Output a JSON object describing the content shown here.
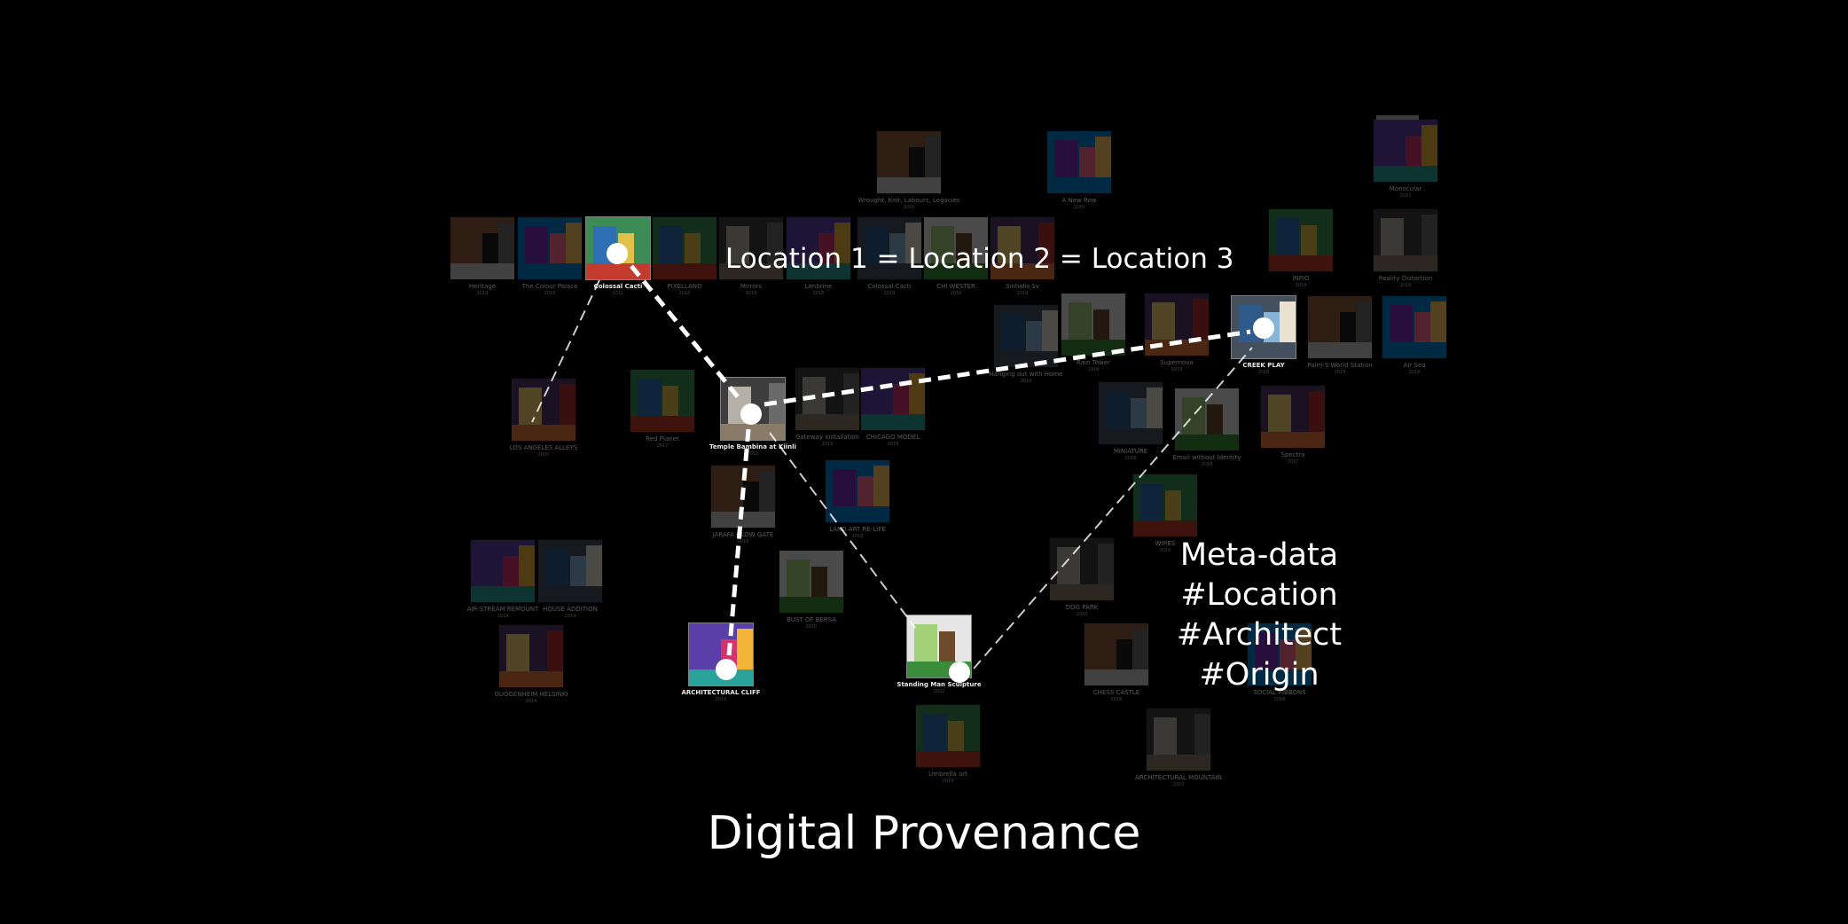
{
  "annotations": {
    "location_equation": "Location 1 = Location 2 = Location 3",
    "metadata_heading": "Meta-data",
    "metadata_tags": [
      "#Location",
      "#Architect",
      "#Origin"
    ]
  },
  "title": "Digital Provenance",
  "colors": {
    "background": "#000000",
    "text": "#ffffff",
    "line": "#ffffff",
    "dot": "#ffffff"
  },
  "nodes": [
    {
      "id": "colossal-cacti-a",
      "label": "Colossal Cacti",
      "year": "2011",
      "highlight": true
    },
    {
      "id": "temple-bambina",
      "label": "Temple Bambina at Kiinli",
      "year": "2012",
      "highlight": true
    },
    {
      "id": "architectural-cliff",
      "label": "ARCHITECTURAL CLIFF",
      "year": "2019",
      "highlight": true
    },
    {
      "id": "creek-play",
      "label": "CREEK PLAY",
      "year": "2018",
      "highlight": true
    },
    {
      "id": "standing-man",
      "label": "Standing Man Sculpture",
      "year": "2022",
      "highlight": true
    },
    {
      "id": "los-angeles-alleys",
      "label": "LOS ANGELES ALLEYS",
      "year": "2020",
      "highlight": false
    },
    {
      "id": "heritage",
      "label": "Heritage",
      "year": "2019",
      "highlight": false
    },
    {
      "id": "colour-palace",
      "label": "The Colour Palace",
      "year": "2019",
      "highlight": false
    },
    {
      "id": "pixelland",
      "label": "PIXELLAND",
      "year": "2018",
      "highlight": false
    },
    {
      "id": "mirrors",
      "label": "Mirrors",
      "year": "2019",
      "highlight": false
    },
    {
      "id": "limbrine",
      "label": "Limbrine",
      "year": "2018",
      "highlight": false
    },
    {
      "id": "colossal-cacti-b",
      "label": "Colossal Cacti",
      "year": "2019",
      "highlight": false
    },
    {
      "id": "chi-wester",
      "label": "CHI WESTER",
      "year": "2019",
      "highlight": false
    },
    {
      "id": "sinhalis-sv",
      "label": "Sinhalis Sv",
      "year": "2019",
      "highlight": false
    },
    {
      "id": "wrought-knit",
      "label": "Wrought, Knit, Labours, Legacies",
      "year": "2020",
      "highlight": false
    },
    {
      "id": "a-new-row",
      "label": "A New Row",
      "year": "2020",
      "highlight": false
    },
    {
      "id": "red-planet",
      "label": "Red Planet",
      "year": "2017",
      "highlight": false
    },
    {
      "id": "gateway-installation",
      "label": "Gateway installation",
      "year": "2019",
      "highlight": false
    },
    {
      "id": "chicago-model",
      "label": "CHICAGO MODEL",
      "year": "2019",
      "highlight": false
    },
    {
      "id": "hanging-out-home",
      "label": "Hanging out with Home",
      "year": "2019",
      "highlight": false
    },
    {
      "id": "rain-tower",
      "label": "Rain Tower",
      "year": "2019",
      "highlight": false
    },
    {
      "id": "supernova",
      "label": "Supernova",
      "year": "2019",
      "highlight": false
    },
    {
      "id": "palm-world",
      "label": "Palm-S World Station",
      "year": "2018",
      "highlight": false
    },
    {
      "id": "air-sea",
      "label": "Air Sea",
      "year": "2018",
      "highlight": false
    },
    {
      "id": "inpio",
      "label": "INPIO",
      "year": "2019",
      "highlight": false
    },
    {
      "id": "reality-distortion",
      "label": "Reality Distortion",
      "year": "2019",
      "highlight": false
    },
    {
      "id": "monocular",
      "label": "Monocular",
      "year": "2017",
      "highlight": false
    },
    {
      "id": "miniature",
      "label": "MINIATURE",
      "year": "2018",
      "highlight": false
    },
    {
      "id": "email-identity",
      "label": "Email without Identity",
      "year": "2018",
      "highlight": false
    },
    {
      "id": "spectra",
      "label": "Spectra",
      "year": "2017",
      "highlight": false
    },
    {
      "id": "jarafa-gate",
      "label": "JARAFA GLOW GATE",
      "year": "2018",
      "highlight": false
    },
    {
      "id": "land-art",
      "label": "LAND ART RE-LIFE",
      "year": "2018",
      "highlight": false
    },
    {
      "id": "wires",
      "label": "WIRES",
      "year": "2019",
      "highlight": false
    },
    {
      "id": "dog-park",
      "label": "DOG PARK",
      "year": "2020",
      "highlight": false
    },
    {
      "id": "addition-a",
      "label": "AIR-STREAM REMOUNT",
      "year": "2019",
      "highlight": false
    },
    {
      "id": "addition-b",
      "label": "HOUSE ADDITION",
      "year": "2019",
      "highlight": false
    },
    {
      "id": "bust-bersa",
      "label": "BUST OF BERSA",
      "year": "2020",
      "highlight": false
    },
    {
      "id": "helsinki",
      "label": "GUGGENHEIM HELSINKI",
      "year": "2014",
      "highlight": false
    },
    {
      "id": "chess-castle",
      "label": "CHESS CASTLE",
      "year": "2018",
      "highlight": false
    },
    {
      "id": "social-ribbons",
      "label": "SOCIAL RIBBONS",
      "year": "2018",
      "highlight": false
    },
    {
      "id": "umbrella-art",
      "label": "Umbrella art",
      "year": "2019",
      "highlight": false
    },
    {
      "id": "arch-mountain",
      "label": "ARCHITECTURAL MOUNTAIN",
      "year": "2015",
      "highlight": false
    }
  ]
}
